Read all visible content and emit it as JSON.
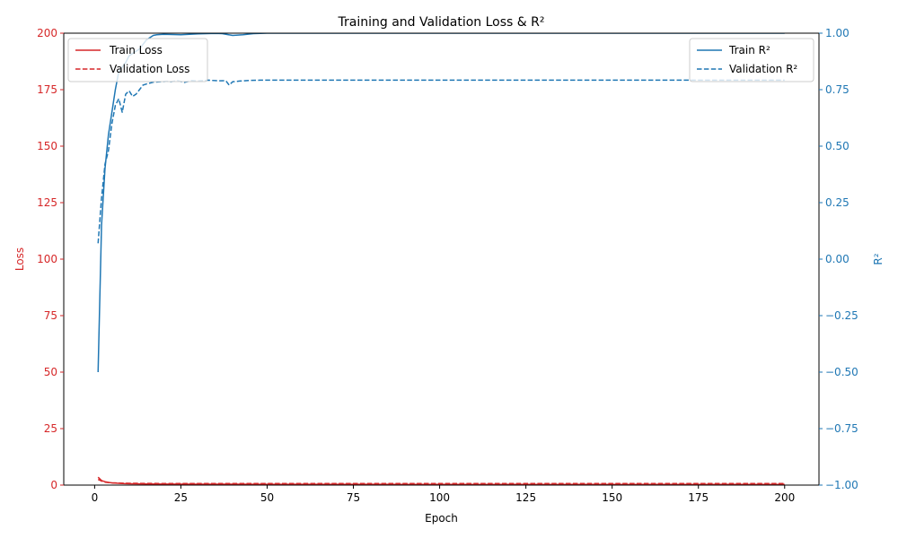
{
  "chart_data": {
    "type": "line",
    "title": "Training and Validation Loss & R²",
    "xlabel": "Epoch",
    "ylabel_left": "Loss",
    "ylabel_right": "R²",
    "xlim": [
      -8.95,
      209.95
    ],
    "ylim_left": [
      0,
      200
    ],
    "ylim_right": [
      -1.0,
      1.0
    ],
    "xticks": [
      0,
      25,
      50,
      75,
      100,
      125,
      150,
      175,
      200
    ],
    "yticks_left": [
      0,
      25,
      50,
      75,
      100,
      125,
      150,
      175,
      200
    ],
    "yticks_right": [
      -1.0,
      -0.75,
      -0.5,
      -0.25,
      0.0,
      0.25,
      0.5,
      0.75,
      1.0
    ],
    "yticklabels_right": [
      "−1.00",
      "−0.75",
      "−0.50",
      "−0.25",
      "0.00",
      "0.25",
      "0.50",
      "0.75",
      "1.00"
    ],
    "grid": false,
    "colors": {
      "loss": "#d62728",
      "r2": "#1f77b4"
    },
    "legend_left": {
      "position": "upper-left",
      "entries": [
        "Train Loss",
        "Validation Loss"
      ]
    },
    "legend_right": {
      "position": "upper-right",
      "entries": [
        "Train R²",
        "Validation R²"
      ]
    },
    "series": [
      {
        "name": "Train Loss",
        "axis": "left",
        "style": "solid",
        "color": "#d62728",
        "points": [
          [
            1,
            3.5
          ],
          [
            2,
            2.0
          ],
          [
            3,
            1.5
          ],
          [
            4,
            1.2
          ],
          [
            5,
            1.0
          ],
          [
            6,
            0.9
          ],
          [
            7,
            0.8
          ],
          [
            8,
            0.7
          ],
          [
            10,
            0.6
          ],
          [
            15,
            0.5
          ],
          [
            20,
            0.45
          ],
          [
            30,
            0.4
          ],
          [
            50,
            0.35
          ],
          [
            100,
            0.3
          ],
          [
            150,
            0.3
          ],
          [
            200,
            0.3
          ]
        ]
      },
      {
        "name": "Validation Loss",
        "axis": "left",
        "style": "dashed",
        "color": "#d62728",
        "points": [
          [
            1,
            2.5
          ],
          [
            2,
            1.8
          ],
          [
            3,
            1.3
          ],
          [
            5,
            1.0
          ],
          [
            7,
            0.9
          ],
          [
            10,
            0.8
          ],
          [
            15,
            0.75
          ],
          [
            20,
            0.7
          ],
          [
            30,
            0.7
          ],
          [
            50,
            0.7
          ],
          [
            100,
            0.7
          ],
          [
            150,
            0.7
          ],
          [
            200,
            0.7
          ]
        ]
      },
      {
        "name": "Train R²",
        "axis": "right",
        "style": "solid",
        "color": "#1f77b4",
        "points": [
          [
            1,
            -0.5
          ],
          [
            2,
            0.15
          ],
          [
            3,
            0.4
          ],
          [
            4,
            0.55
          ],
          [
            5,
            0.65
          ],
          [
            6,
            0.75
          ],
          [
            7,
            0.83
          ],
          [
            8,
            0.85
          ],
          [
            9,
            0.87
          ],
          [
            10,
            0.9
          ],
          [
            11,
            0.91
          ],
          [
            12,
            0.92
          ],
          [
            13,
            0.93
          ],
          [
            14,
            0.95
          ],
          [
            15,
            0.97
          ],
          [
            16,
            0.98
          ],
          [
            17,
            0.99
          ],
          [
            18,
            0.993
          ],
          [
            20,
            0.995
          ],
          [
            25,
            0.993
          ],
          [
            30,
            0.997
          ],
          [
            35,
            0.999
          ],
          [
            37,
            0.998
          ],
          [
            40,
            0.99
          ],
          [
            43,
            0.993
          ],
          [
            46,
            0.998
          ],
          [
            50,
            1.0
          ],
          [
            100,
            1.0
          ],
          [
            150,
            1.0
          ],
          [
            200,
            1.0
          ]
        ]
      },
      {
        "name": "Validation R²",
        "axis": "right",
        "style": "dashed",
        "color": "#1f77b4",
        "points": [
          [
            1,
            0.07
          ],
          [
            2,
            0.27
          ],
          [
            3,
            0.42
          ],
          [
            4,
            0.48
          ],
          [
            5,
            0.6
          ],
          [
            6,
            0.68
          ],
          [
            7,
            0.71
          ],
          [
            8,
            0.65
          ],
          [
            9,
            0.73
          ],
          [
            10,
            0.745
          ],
          [
            11,
            0.72
          ],
          [
            12,
            0.73
          ],
          [
            13,
            0.75
          ],
          [
            14,
            0.77
          ],
          [
            15,
            0.775
          ],
          [
            17,
            0.783
          ],
          [
            19,
            0.785
          ],
          [
            21,
            0.787
          ],
          [
            22,
            0.785
          ],
          [
            24,
            0.79
          ],
          [
            26,
            0.782
          ],
          [
            28,
            0.79
          ],
          [
            30,
            0.788
          ],
          [
            33,
            0.792
          ],
          [
            36,
            0.789
          ],
          [
            38,
            0.79
          ],
          [
            39,
            0.77
          ],
          [
            40,
            0.785
          ],
          [
            42,
            0.788
          ],
          [
            45,
            0.791
          ],
          [
            48,
            0.792
          ],
          [
            50,
            0.792
          ],
          [
            100,
            0.792
          ],
          [
            150,
            0.792
          ],
          [
            200,
            0.792
          ]
        ]
      }
    ]
  }
}
